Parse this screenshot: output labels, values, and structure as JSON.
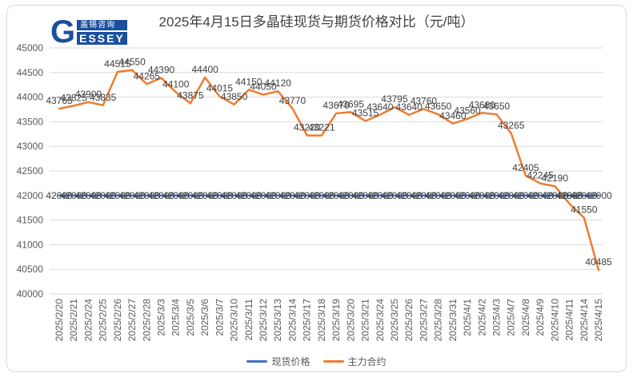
{
  "title": "2025年4月15日多晶硅现货与期货价格对比（元/吨）",
  "logo": {
    "letter": "G",
    "cn": "盖锡咨询",
    "en": "ESSEY"
  },
  "colors": {
    "spot": "#4472C4",
    "futures": "#ED7D31",
    "grid": "#D9D9D9",
    "axis_text": "#595959",
    "label_text": "#404040",
    "title_text": "#404040",
    "logo_blue": "#1B4F9E",
    "frame_border": "#D9D9D9"
  },
  "chart_data": {
    "type": "line",
    "title": "2025年4月15日多晶硅现货与期货价格对比（元/吨）",
    "categories": [
      "2025/2/20",
      "2025/2/21",
      "2025/2/24",
      "2025/2/25",
      "2025/2/26",
      "2025/2/27",
      "2025/2/28",
      "2025/3/3",
      "2025/3/4",
      "2025/3/5",
      "2025/3/6",
      "2025/3/7",
      "2025/3/10",
      "2025/3/11",
      "2025/3/12",
      "2025/3/13",
      "2025/3/14",
      "2025/3/17",
      "2025/3/18",
      "2025/3/19",
      "2025/3/20",
      "2025/3/21",
      "2025/3/24",
      "2025/3/25",
      "2025/3/26",
      "2025/3/27",
      "2025/3/28",
      "2025/3/31",
      "2025/4/1",
      "2025/4/2",
      "2025/4/3",
      "2025/4/7",
      "2025/4/8",
      "2025/4/9",
      "2025/4/10",
      "2025/4/11",
      "2025/4/14",
      "2025/4/15"
    ],
    "series": [
      {
        "id": "spot",
        "name": "现货价格",
        "color": "#4472C4",
        "label_position": "center",
        "values": [
          42000,
          42000,
          42000,
          42000,
          42000,
          42000,
          42000,
          42000,
          42000,
          42000,
          42000,
          42000,
          42000,
          42000,
          42000,
          42000,
          42000,
          42000,
          42000,
          42000,
          42000,
          42000,
          42000,
          42000,
          42000,
          42000,
          42000,
          42000,
          42000,
          42000,
          42000,
          42000,
          42000,
          42000,
          42000,
          42000,
          42000,
          42000
        ]
      },
      {
        "id": "futures",
        "name": "主力合约",
        "color": "#ED7D31",
        "label_position": "above",
        "values": [
          43765,
          43825,
          43900,
          43835,
          44515,
          44550,
          44265,
          44390,
          44100,
          43875,
          44400,
          44015,
          43850,
          44150,
          44050,
          44120,
          43770,
          43220,
          43221,
          43670,
          43695,
          43515,
          43640,
          43795,
          43640,
          43760,
          43650,
          43460,
          43560,
          43680,
          43650,
          43265,
          42405,
          42245,
          42190,
          41835,
          41550,
          40485
        ]
      }
    ],
    "ylim": [
      40000,
      45000
    ],
    "ytick": 500,
    "y_tick_labels": [
      "40000",
      "40500",
      "41000",
      "41500",
      "42000",
      "42500",
      "43000",
      "43500",
      "44000",
      "44500",
      "45000"
    ],
    "grid": true,
    "data_labels": true,
    "x_label_rotation": 90,
    "legend_position": "bottom"
  }
}
